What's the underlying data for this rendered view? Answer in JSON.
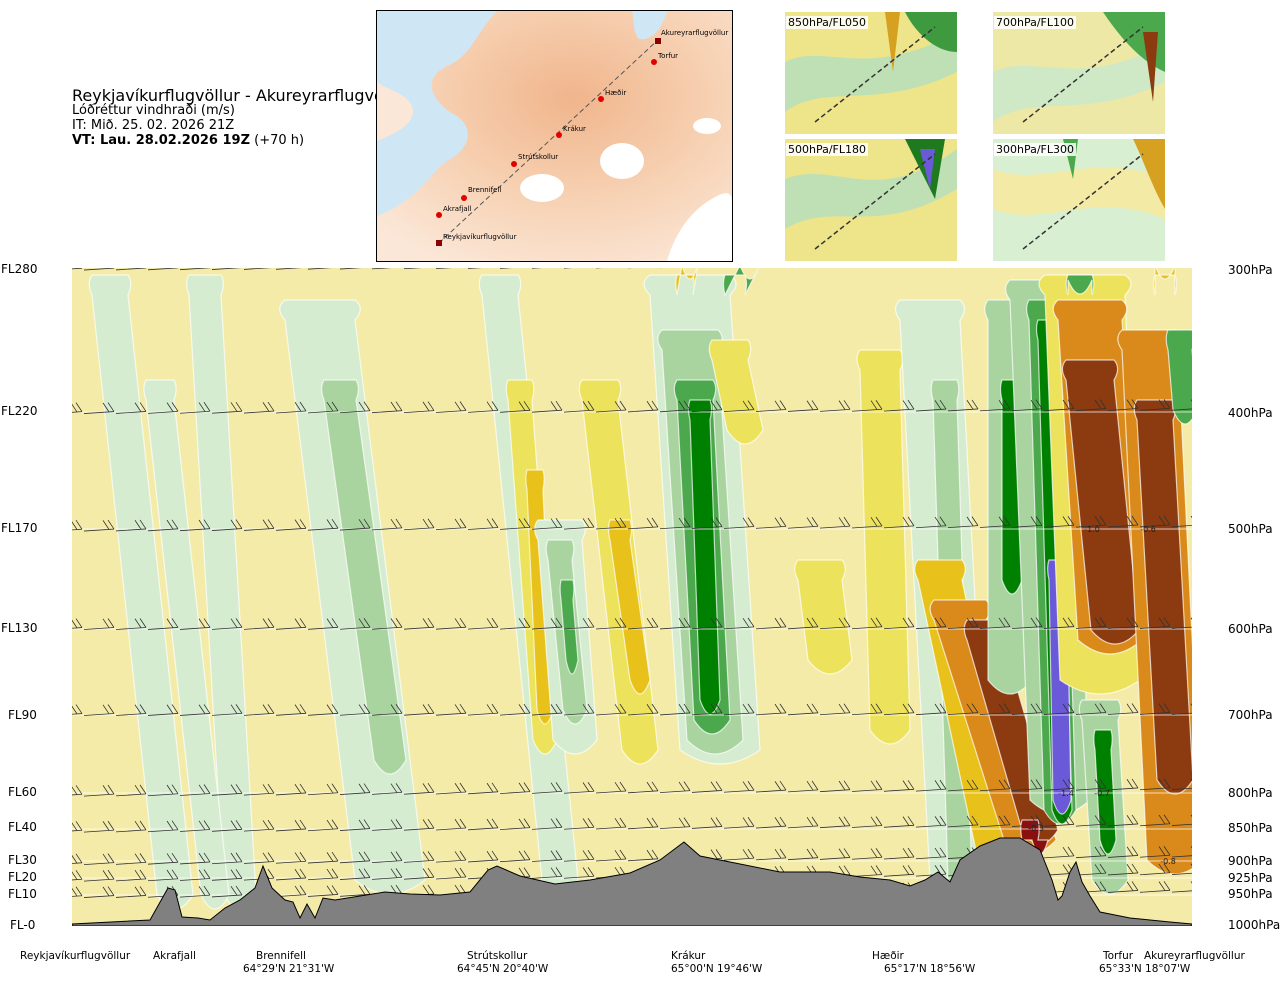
{
  "header": {
    "route": "Reykjavíkurflugvöllur - Akureyrarflugvöllur",
    "quantity": "Lóðréttur vindhraði (m/s)",
    "issue_time": "IT: Mið. 25. 02. 2026 21Z",
    "valid_time_bold": "VT: Lau. 28.02.2026 19Z",
    "valid_time_lead": "(+70 h)"
  },
  "map": {
    "points": [
      "Akureyrarflugvöllur",
      "Torfur",
      "Hæðir",
      "Krákur",
      "Strútskollur",
      "Brennifell",
      "Akrafjall",
      "Reykjavíkurflugvöllur"
    ]
  },
  "minimaps": [
    {
      "label": "850hPa/FL050"
    },
    {
      "label": "700hPa/FL100"
    },
    {
      "label": "500hPa/FL180"
    },
    {
      "label": "300hPa/FL300"
    }
  ],
  "chart_data": {
    "type": "heatmap",
    "y_left_labels": [
      "FL280",
      "FL220",
      "FL170",
      "FL130",
      "FL90",
      "FL60",
      "FL40",
      "FL30",
      "FL20",
      "FL10",
      "FL-0"
    ],
    "y_right_labels": [
      "300hPa",
      "400hPa",
      "500hPa",
      "600hPa",
      "700hPa",
      "800hPa",
      "850hPa",
      "900hPa",
      "925hPa",
      "950hPa",
      "1000hPa"
    ],
    "value_labels": [
      "-1.0",
      "-0.6",
      "-1.4",
      "-0.7",
      "-0.8",
      "-0.3"
    ],
    "locations": [
      {
        "name": "Reykjavíkurflugvöllur",
        "coord": ""
      },
      {
        "name": "Akrafjall",
        "coord": ""
      },
      {
        "name": "Brennifell",
        "coord": "64°29'N 21°31'W"
      },
      {
        "name": "Strútskollur",
        "coord": "64°45'N 20°40'W"
      },
      {
        "name": "Krákur",
        "coord": "65°00'N 19°46'W"
      },
      {
        "name": "Hæðir",
        "coord": "65°17'N 18°56'W"
      },
      {
        "name": "Torfur",
        "coord": "65°33'N 18°07'W"
      },
      {
        "name": "Akureyrarflugvöllur",
        "coord": ""
      }
    ],
    "colors": {
      "strong_down": "#6a5ad8",
      "down_dark": "#008000",
      "down_mid": "#4ca84c",
      "down_light": "#a9d4a0",
      "down_faint": "#d5ecd0",
      "neutral": "#f5eba8",
      "up_light": "#ede25c",
      "up_mid": "#e8c21a",
      "up_strong": "#da8a1a",
      "up_dark": "#8c3a10",
      "up_max": "#8a1010",
      "terrain": "#808080"
    }
  }
}
